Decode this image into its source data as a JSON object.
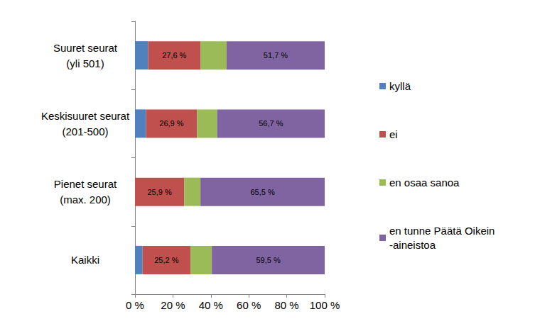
{
  "chart_data": {
    "type": "bar",
    "orientation": "horizontal",
    "stacked": true,
    "categories": [
      "Kaikki",
      "Pienet seurat\n(max. 200)",
      "Keskisuuret seurat\n(201-500)",
      "Suuret seurat\n(yli 501)"
    ],
    "series": [
      {
        "name": "kyllä",
        "color": "#4f81bd",
        "values": [
          4.0,
          0,
          5.8,
          6.9
        ]
      },
      {
        "name": "ei",
        "color": "#c0504d",
        "values": [
          25.2,
          25.9,
          26.9,
          27.6
        ],
        "data_labels": true,
        "value_labels": [
          "25,2 %",
          "25,9 %",
          "26,9 %",
          "27,6 %"
        ]
      },
      {
        "name": "en osaa sanoa",
        "color": "#9bbb59",
        "values": [
          11.3,
          8.6,
          10.6,
          13.8
        ]
      },
      {
        "name": "en tunne Päätä Oikein -aineistoa",
        "color": "#8064a2",
        "values": [
          59.5,
          65.5,
          56.7,
          51.7
        ],
        "data_labels": true,
        "value_labels": [
          "59,5 %",
          "65,5 %",
          "56,7 %",
          "51,7 %"
        ]
      }
    ],
    "xlim": [
      0,
      100
    ],
    "xticks": [
      {
        "value": 0,
        "label": "0 %"
      },
      {
        "value": 20,
        "label": "20 %"
      },
      {
        "value": 40,
        "label": "40 %"
      },
      {
        "value": 60,
        "label": "60 %"
      },
      {
        "value": 80,
        "label": "80 %"
      },
      {
        "value": 100,
        "label": "100 %"
      }
    ],
    "grid": false,
    "legend": "right"
  }
}
